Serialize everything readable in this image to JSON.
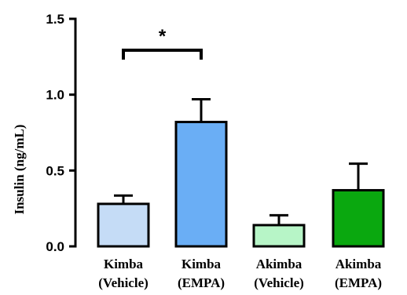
{
  "chart_data": {
    "type": "bar",
    "title": "",
    "xlabel": "",
    "ylabel": "Insulin (ng/mL)",
    "ylim": [
      0,
      1.5
    ],
    "yticks": [
      "0.0",
      "0.5",
      "1.0",
      "1.5"
    ],
    "grid": false,
    "categories": [
      {
        "line1": "Kimba",
        "line2": "(Vehicle)",
        "fill": "#c5dcf6"
      },
      {
        "line1": "Kimba",
        "line2": "(EMPA)",
        "fill": "#6aaef5"
      },
      {
        "line1": "Akimba",
        "line2": "(Vehicle)",
        "fill": "#b7f5c7"
      },
      {
        "line1": "Akimba",
        "line2": "(EMPA)",
        "fill": "#0aa80f"
      }
    ],
    "values": [
      0.28,
      0.82,
      0.14,
      0.37
    ],
    "errors": [
      0.055,
      0.15,
      0.065,
      0.175
    ],
    "significance": {
      "from": 0,
      "to": 1,
      "label": "*"
    }
  }
}
